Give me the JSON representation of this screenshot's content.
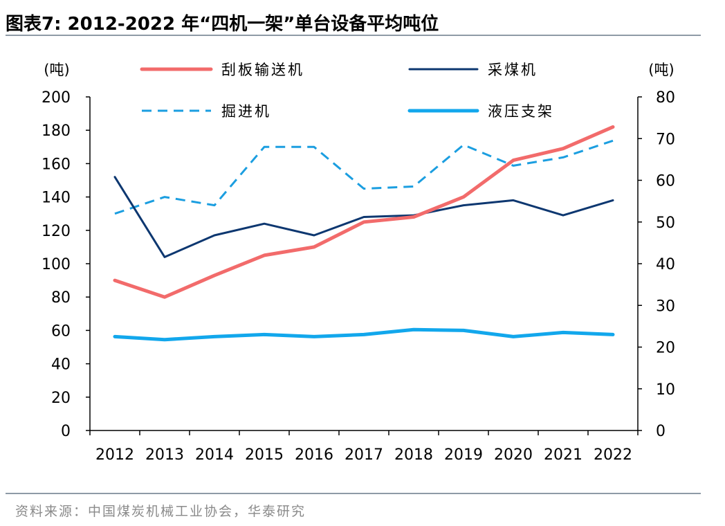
{
  "figure": {
    "title": "图表7:   2012-2022 年“四机一架”单台设备平均吨位",
    "source": "资料来源：中国煤炭机械工业协会，华泰研究"
  },
  "chart_data": {
    "type": "line",
    "x": [
      "2012",
      "2013",
      "2014",
      "2015",
      "2016",
      "2017",
      "2018",
      "2019",
      "2020",
      "2021",
      "2022"
    ],
    "left_axis": {
      "unit_label": "(吨)",
      "ylim": [
        0,
        200
      ],
      "ticks": [
        0,
        20,
        40,
        60,
        80,
        100,
        120,
        140,
        160,
        180,
        200
      ]
    },
    "right_axis": {
      "unit_label": "(吨)",
      "ylim": [
        0,
        80
      ],
      "ticks": [
        0,
        10,
        20,
        30,
        40,
        50,
        60,
        70,
        80
      ]
    },
    "series": [
      {
        "name": "刮板输送机",
        "axis": "left",
        "color": "#f26b6b",
        "style": "solid",
        "width": 5,
        "values": [
          90,
          80,
          93,
          105,
          110,
          125,
          128,
          140,
          162,
          169,
          182
        ]
      },
      {
        "name": "采煤机",
        "axis": "left",
        "color": "#0d3770",
        "style": "solid",
        "width": 3,
        "values": [
          152,
          104,
          117,
          124,
          117,
          128,
          129,
          135,
          138,
          129,
          138
        ]
      },
      {
        "name": "掘进机",
        "axis": "right",
        "color": "#1b9ee0",
        "style": "dashed",
        "width": 3,
        "values": [
          52,
          56,
          54,
          68,
          68,
          58,
          58.5,
          68.5,
          63.5,
          65.5,
          69.5
        ]
      },
      {
        "name": "液压支架",
        "axis": "right",
        "color": "#12a7ec",
        "style": "solid",
        "width": 5,
        "values": [
          22.5,
          21.8,
          22.5,
          23,
          22.5,
          23,
          24.2,
          24,
          22.5,
          23.5,
          23
        ]
      }
    ],
    "legend_position": "top",
    "grid": false
  }
}
